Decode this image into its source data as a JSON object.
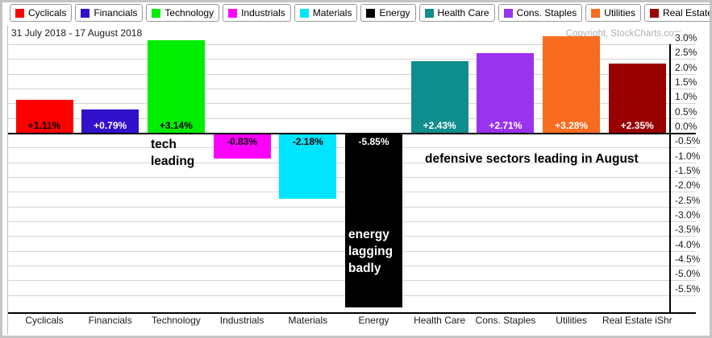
{
  "header": {
    "date_range": "31 July 2018 - 17 August 2018",
    "copyright": "Copyright, StockCharts.com"
  },
  "legend": {
    "position": "top",
    "items": [
      {
        "label": "Cyclicals",
        "color": "#FF0000"
      },
      {
        "label": "Financials",
        "color": "#3311CC"
      },
      {
        "label": "Technology",
        "color": "#00EE00"
      },
      {
        "label": "Industrials",
        "color": "#FF00FF"
      },
      {
        "label": "Materials",
        "color": "#00E5FF"
      },
      {
        "label": "Energy",
        "color": "#000000"
      },
      {
        "label": "Health Care",
        "color": "#108D8D"
      },
      {
        "label": "Cons. Staples",
        "color": "#9933EE"
      },
      {
        "label": "Utilities",
        "color": "#F96B1E"
      },
      {
        "label": "Real Estate iShr",
        "color": "#990000"
      }
    ]
  },
  "chart_data": {
    "type": "bar",
    "title": "31 July 2018 - 17 August 2018",
    "xlabel": "",
    "ylabel": "",
    "categories": [
      "Cyclicals",
      "Financials",
      "Technology",
      "Industrials",
      "Materials",
      "Energy",
      "Health Care",
      "Cons. Staples",
      "Utilities",
      "Real Estate iShr"
    ],
    "values": [
      1.11,
      0.79,
      3.14,
      -0.83,
      -2.18,
      -5.85,
      2.43,
      2.71,
      3.28,
      2.35
    ],
    "bar_labels": [
      "+1.11%",
      "+0.79%",
      "+3.14%",
      "-0.83%",
      "-2.18%",
      "-5.85%",
      "+2.43%",
      "+2.71%",
      "+3.28%",
      "+2.35%"
    ],
    "bar_colors": [
      "#FF0000",
      "#3311CC",
      "#00EE00",
      "#FF00FF",
      "#00E5FF",
      "#000000",
      "#108D8D",
      "#9933EE",
      "#F96B1E",
      "#990000"
    ],
    "bar_label_colors": [
      "#000000",
      "#FFFFFF",
      "#000000",
      "#000000",
      "#000000",
      "#FFFFFF",
      "#FFFFFF",
      "#FFFFFF",
      "#FFFFFF",
      "#FFFFFF"
    ],
    "y_ticks": [
      "3.0%",
      "2.5%",
      "2.0%",
      "1.5%",
      "1.0%",
      "0.5%",
      "0.0%",
      "-0.5%",
      "-1.0%",
      "-1.5%",
      "-2.0%",
      "-2.5%",
      "-3.0%",
      "-3.5%",
      "-4.0%",
      "-4.5%",
      "-5.0%",
      "-5.5%"
    ],
    "y_tick_values": [
      3.0,
      2.5,
      2.0,
      1.5,
      1.0,
      0.5,
      0.0,
      -0.5,
      -1.0,
      -1.5,
      -2.0,
      -2.5,
      -3.0,
      -3.5,
      -4.0,
      -4.5,
      -5.0,
      -5.5
    ],
    "ylim": [
      -6.1,
      3.4
    ],
    "grid": true,
    "legend_position": "top",
    "axis_side": "right",
    "annotations": [
      {
        "id": "tech-leading",
        "lines": [
          "tech",
          "leading"
        ],
        "color": "#000000",
        "x": 184,
        "y": 166
      },
      {
        "id": "defensive-leading",
        "lines": [
          "defensive sectors leading in August"
        ],
        "color": "#000000",
        "x": 524,
        "y": 184
      },
      {
        "id": "energy-lagging",
        "lines": [
          "energy",
          "lagging",
          "badly"
        ],
        "color": "#FFFFFF",
        "x": 429,
        "y": 278
      }
    ]
  }
}
